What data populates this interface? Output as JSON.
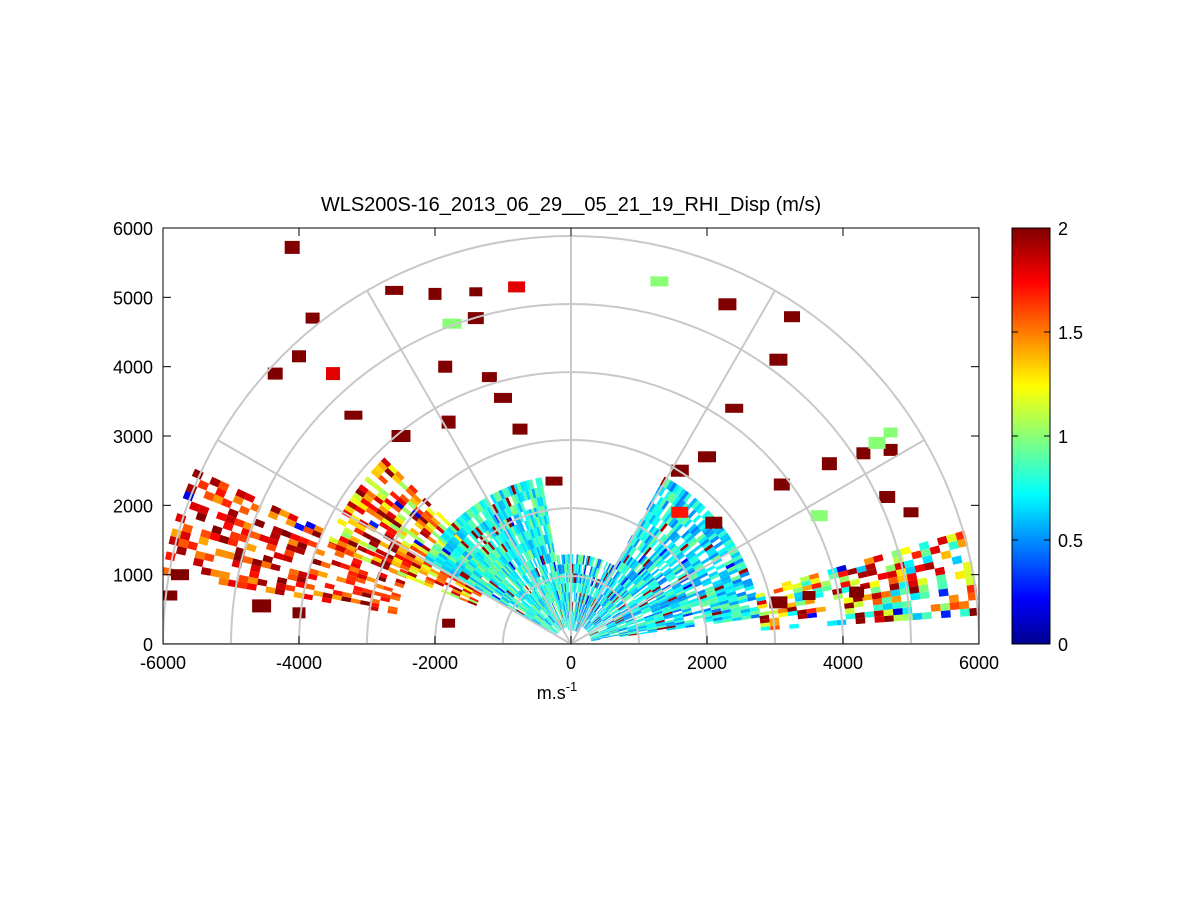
{
  "chart_data": {
    "type": "heatmap",
    "subtype": "polar-rhi",
    "title": "WLS200S-16_2013_06_29__05_21_19_RHI_Disp (m/s)",
    "xlabel_base": "m.s",
    "xlabel_sup": "-1",
    "xlim": [
      -6000,
      6000
    ],
    "ylim": [
      0,
      6000
    ],
    "xticks": [
      -6000,
      -4000,
      -2000,
      0,
      2000,
      4000,
      6000
    ],
    "xtick_labels": [
      "-6000",
      "-4000",
      "-2000",
      "0",
      "2000",
      "4000",
      "6000"
    ],
    "yticks": [
      0,
      1000,
      2000,
      3000,
      4000,
      5000,
      6000
    ],
    "ytick_labels": [
      "0",
      "1000",
      "2000",
      "3000",
      "4000",
      "5000",
      "6000"
    ],
    "polar_rings": [
      1000,
      2000,
      3000,
      4000,
      5000,
      6000
    ],
    "polar_spokes_deg": [
      0,
      30,
      60,
      90,
      120,
      150,
      180
    ],
    "colorbar": {
      "colormap": "jet",
      "range": [
        0,
        2
      ],
      "ticks": [
        0,
        0.5,
        1,
        1.5,
        2
      ],
      "tick_labels": [
        "0",
        "0.5",
        "1",
        "1.5",
        "2"
      ],
      "stops": [
        "#00008f",
        "#0000ff",
        "#00ffff",
        "#ffff00",
        "#ff0000",
        "#800000"
      ]
    },
    "dense_sectors": [
      {
        "az_from": 155,
        "az_to": 170,
        "r_from": 2600,
        "r_to": 6000,
        "v_min": 1.4,
        "v_max": 2.0,
        "cover": 0.55
      },
      {
        "az_from": 135,
        "az_to": 158,
        "r_from": 1500,
        "r_to": 3800,
        "v_min": 1.0,
        "v_max": 2.0,
        "cover": 0.65
      },
      {
        "az_from": 100,
        "az_to": 150,
        "r_from": 250,
        "r_to": 2400,
        "v_min": 0.55,
        "v_max": 1.0,
        "cover": 0.9
      },
      {
        "az_from": 60,
        "az_to": 100,
        "r_from": 200,
        "r_to": 1300,
        "v_min": 0.4,
        "v_max": 1.0,
        "cover": 0.85
      },
      {
        "az_from": 8,
        "az_to": 60,
        "r_from": 300,
        "r_to": 2800,
        "v_min": 0.45,
        "v_max": 0.95,
        "cover": 0.8
      },
      {
        "az_from": 4,
        "az_to": 15,
        "r_from": 2800,
        "r_to": 6000,
        "v_min": 0.6,
        "v_max": 2.0,
        "cover": 0.6
      }
    ],
    "sparse_blocks": [
      {
        "x": -4100,
        "y": 5720,
        "v": 2
      },
      {
        "x": -2600,
        "y": 5100,
        "v": 2
      },
      {
        "x": -2000,
        "y": 5050,
        "v": 2
      },
      {
        "x": -1400,
        "y": 5080,
        "v": 2
      },
      {
        "x": -800,
        "y": 5150,
        "v": 1.8
      },
      {
        "x": 1300,
        "y": 5230,
        "v": 1.0
      },
      {
        "x": -3800,
        "y": 4700,
        "v": 2
      },
      {
        "x": -1750,
        "y": 4620,
        "v": 1.0
      },
      {
        "x": -1400,
        "y": 4700,
        "v": 2
      },
      {
        "x": -4000,
        "y": 4150,
        "v": 2
      },
      {
        "x": -3500,
        "y": 3900,
        "v": 1.8
      },
      {
        "x": -1850,
        "y": 4000,
        "v": 2
      },
      {
        "x": -1200,
        "y": 3850,
        "v": 2
      },
      {
        "x": -1000,
        "y": 3550,
        "v": 2
      },
      {
        "x": -4350,
        "y": 3900,
        "v": 2
      },
      {
        "x": -3200,
        "y": 3300,
        "v": 2
      },
      {
        "x": -2500,
        "y": 3000,
        "v": 2
      },
      {
        "x": -1800,
        "y": 3200,
        "v": 2
      },
      {
        "x": -750,
        "y": 3100,
        "v": 2
      },
      {
        "x": -250,
        "y": 2350,
        "v": 2
      },
      {
        "x": 2300,
        "y": 4900,
        "v": 2
      },
      {
        "x": 3050,
        "y": 4100,
        "v": 2
      },
      {
        "x": 3250,
        "y": 4720,
        "v": 2
      },
      {
        "x": 2400,
        "y": 3400,
        "v": 2
      },
      {
        "x": 2000,
        "y": 2700,
        "v": 2
      },
      {
        "x": 1600,
        "y": 2500,
        "v": 2
      },
      {
        "x": 3100,
        "y": 2300,
        "v": 2
      },
      {
        "x": 3800,
        "y": 2600,
        "v": 2
      },
      {
        "x": 4300,
        "y": 2750,
        "v": 2
      },
      {
        "x": 4700,
        "y": 2800,
        "v": 2
      },
      {
        "x": 4700,
        "y": 3050,
        "v": 1.0
      },
      {
        "x": 4500,
        "y": 2900,
        "v": 1.0
      },
      {
        "x": 5000,
        "y": 1900,
        "v": 2
      },
      {
        "x": 4650,
        "y": 2120,
        "v": 2
      },
      {
        "x": 3650,
        "y": 1850,
        "v": 1.0
      },
      {
        "x": 2100,
        "y": 1750,
        "v": 2
      },
      {
        "x": 1600,
        "y": 1900,
        "v": 1.7
      },
      {
        "x": -5750,
        "y": 1000,
        "v": 2
      },
      {
        "x": -5900,
        "y": 700,
        "v": 2
      },
      {
        "x": -4550,
        "y": 550,
        "v": 2
      },
      {
        "x": -4000,
        "y": 450,
        "v": 2
      },
      {
        "x": -1800,
        "y": 300,
        "v": 2
      },
      {
        "x": 3050,
        "y": 600,
        "v": 2
      },
      {
        "x": 3500,
        "y": 700,
        "v": 2
      },
      {
        "x": 4200,
        "y": 750,
        "v": 2
      }
    ]
  }
}
